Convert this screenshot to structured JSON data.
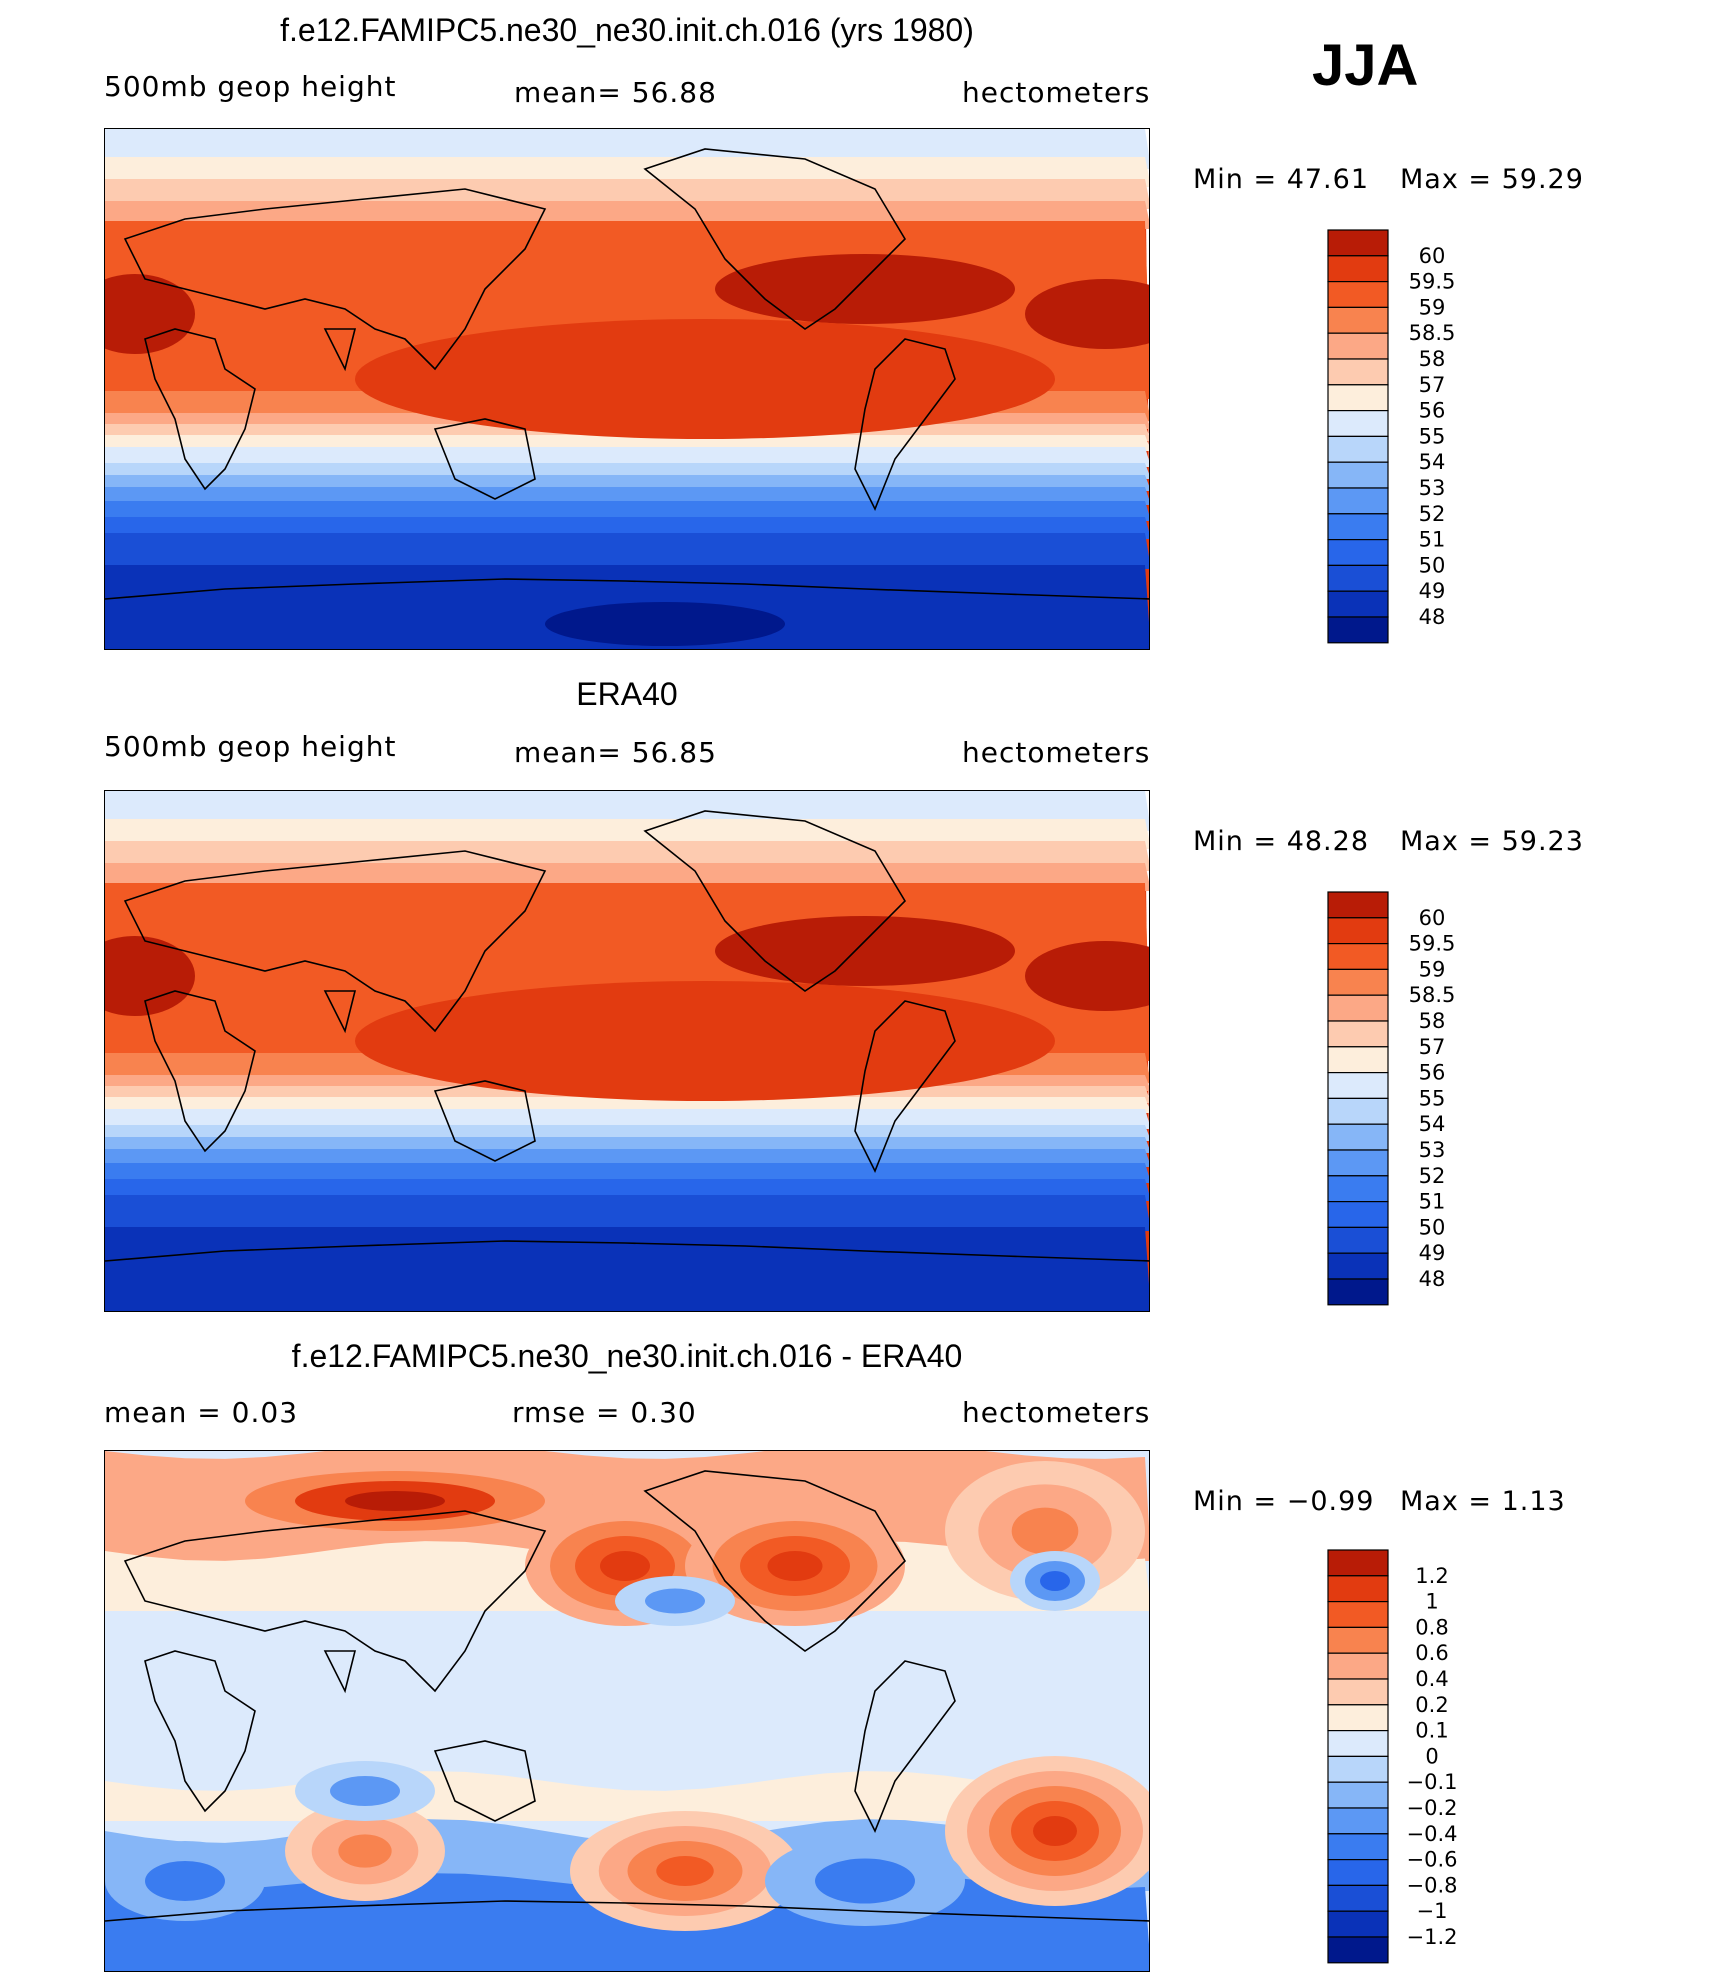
{
  "season": "JJA",
  "colors": {
    "abs_scale": [
      "#00188c",
      "#0a32b8",
      "#1a4fd6",
      "#2866ea",
      "#3a7cf0",
      "#5c98f4",
      "#86b6f7",
      "#b8d6fa",
      "#dceafc",
      "#fdeedc",
      "#fdcbb0",
      "#fca886",
      "#f8834f",
      "#f25a24",
      "#e23b10",
      "#b81c06",
      "#8a0f02"
    ],
    "diff_scale": [
      "#00188c",
      "#0a32b8",
      "#1a4fd6",
      "#2866ea",
      "#3a7cf0",
      "#5c98f4",
      "#86b6f7",
      "#b8d6fa",
      "#dceafc",
      "#fdeedc",
      "#fdcbb0",
      "#fca886",
      "#f8834f",
      "#f25a24",
      "#e23b10",
      "#b81c06",
      "#8a0f02"
    ],
    "coast": "#000000"
  },
  "panels": [
    {
      "title": "f.e12.FAMIPC5.ne30_ne30.init.ch.016 (yrs 1980)",
      "left_label": "500mb geop height",
      "center_label": "mean= 56.88",
      "right_label": "hectometers",
      "min_label": "Min = 47.61",
      "max_label": "Max = 59.29",
      "legend": [
        "60",
        "59.5",
        "59",
        "58.5",
        "58",
        "57",
        "56",
        "55",
        "54",
        "53",
        "52",
        "51",
        "50",
        "49",
        "48"
      ]
    },
    {
      "title": "ERA40",
      "left_label": "500mb geop height",
      "center_label": "mean= 56.85",
      "right_label": "hectometers",
      "min_label": "Min = 48.28",
      "max_label": "Max = 59.23",
      "legend": [
        "60",
        "59.5",
        "59",
        "58.5",
        "58",
        "57",
        "56",
        "55",
        "54",
        "53",
        "52",
        "51",
        "50",
        "49",
        "48"
      ]
    },
    {
      "title": "f.e12.FAMIPC5.ne30_ne30.init.ch.016 - ERA40",
      "left_label": "mean = 0.03",
      "center_label": "rmse = 0.30",
      "right_label": "hectometers",
      "min_label": "Min = −0.99",
      "max_label": "Max = 1.13",
      "legend": [
        "1.2",
        "1",
        "0.8",
        "0.6",
        "0.4",
        "0.2",
        "0.1",
        "0",
        "−0.1",
        "−0.2",
        "−0.4",
        "−0.6",
        "−0.8",
        "−1",
        "−1.2"
      ]
    }
  ]
}
